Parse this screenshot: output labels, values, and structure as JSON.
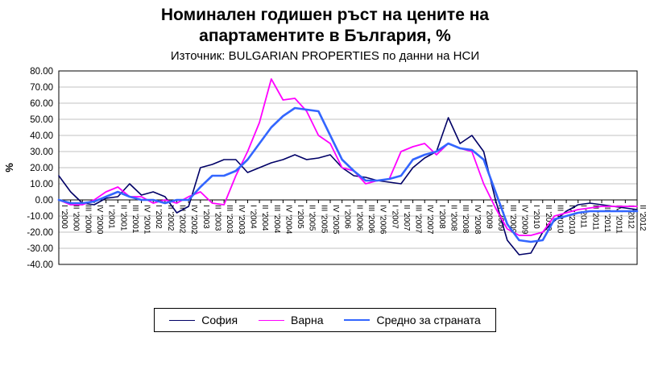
{
  "title": {
    "line1": "Номинален годишен ръст на цените на",
    "line2": "апартаментите в България, %",
    "subtitle": "Източник: BULGARIAN PROPERTIES по данни на НСИ"
  },
  "colors": {
    "grid": "#c0c0c0",
    "axis": "#000000",
    "plot_border": "#000000",
    "background": "#ffffff"
  },
  "chart_data": {
    "type": "line",
    "title": "Номинален годишен ръст на цените на апартаментите в България, %",
    "subtitle": "Източник: BULGARIAN PROPERTIES по данни на НСИ",
    "xlabel": "",
    "ylabel": "%",
    "ylim": [
      -40,
      80
    ],
    "ytick_step": 10,
    "grid": "horizontal",
    "legend_position": "bottom",
    "categories": [
      "I '2000",
      "II '2000",
      "III '2000",
      "IV '2000",
      "I '2001",
      "II '2001",
      "III '2001",
      "IV '2001",
      "I '2002",
      "II '2002",
      "III '2002",
      "IV '2002",
      "I '2003",
      "II '2003",
      "III '2003",
      "IV '2003",
      "I '2004",
      "II '2004",
      "III '2004",
      "IV '2004",
      "I '2005",
      "II '2005",
      "III '2005",
      "IV '2005",
      "I '2006",
      "II '2006",
      "III '2006",
      "IV '2006",
      "I '2007",
      "II '2007",
      "III '2007",
      "IV '2007",
      "I '2008",
      "II '2008",
      "III '2008",
      "IV '2008",
      "I '2009",
      "II '2009",
      "III '2009",
      "IV '2009",
      "I '2010",
      "II '2010",
      "III '2010",
      "IV '2010",
      "I '2011",
      "II '2011",
      "III '2011",
      "IV '2011",
      "I '2012",
      "II '2012"
    ],
    "series": [
      {
        "name": "София",
        "color": "#000066",
        "width": 1.6,
        "values": [
          15,
          5,
          -2,
          -3,
          1,
          2,
          10,
          3,
          5,
          2,
          -8,
          -4,
          20,
          22,
          25,
          25,
          17,
          20,
          23,
          25,
          28,
          25,
          26,
          28,
          20,
          15,
          14,
          12,
          11,
          10,
          20,
          26,
          30,
          51,
          35,
          40,
          30,
          0,
          -25,
          -34,
          -33,
          -20,
          -13,
          -7,
          -3,
          -2,
          -3,
          -4,
          -5,
          -6
        ]
      },
      {
        "name": "Варна",
        "color": "#ff00ff",
        "width": 1.8,
        "values": [
          0,
          -3,
          -3,
          0,
          5,
          8,
          2,
          2,
          -2,
          0,
          -2,
          2,
          5,
          -2,
          -3,
          15,
          30,
          48,
          75,
          62,
          63,
          55,
          40,
          35,
          20,
          18,
          10,
          12,
          13,
          30,
          33,
          35,
          28,
          35,
          32,
          30,
          10,
          -5,
          -18,
          -22,
          -22,
          -20,
          -10,
          -8,
          -6,
          -5,
          -4,
          -4,
          -4,
          -4
        ]
      },
      {
        "name": "Средно за страната",
        "color": "#3366ff",
        "width": 2.6,
        "values": [
          0,
          -2,
          -2,
          -1,
          2,
          5,
          2,
          0,
          0,
          -2,
          0,
          0,
          8,
          15,
          15,
          18,
          25,
          35,
          45,
          52,
          57,
          56,
          55,
          40,
          25,
          18,
          12,
          12,
          13,
          15,
          25,
          28,
          30,
          35,
          32,
          31,
          25,
          5,
          -15,
          -25,
          -26,
          -25,
          -12,
          -10,
          -8,
          -7,
          -7,
          -7,
          -7,
          -7
        ]
      }
    ]
  }
}
